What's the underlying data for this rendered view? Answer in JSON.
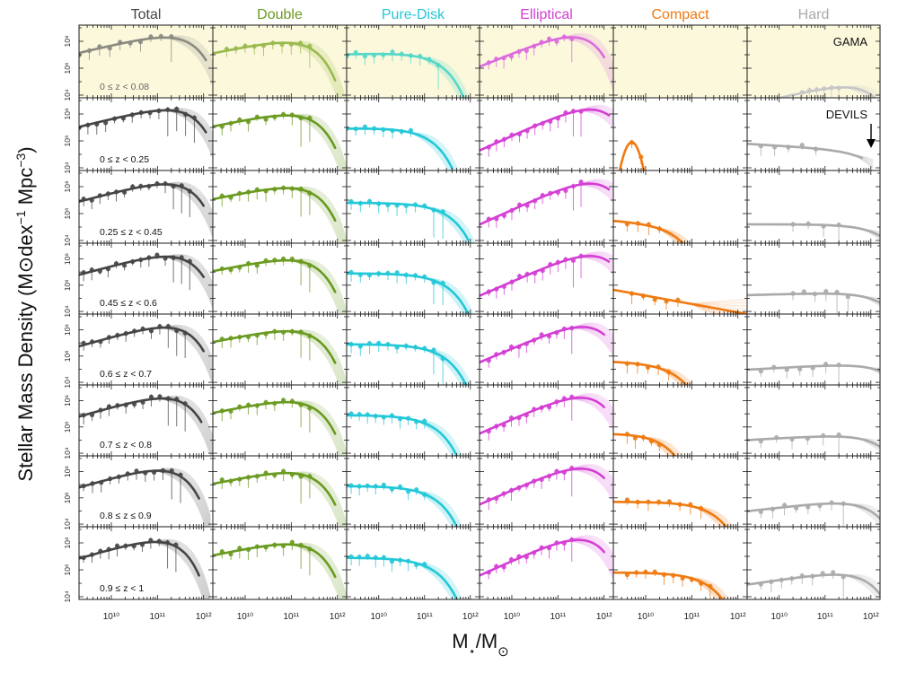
{
  "figure": {
    "ylabel_pre": "Stellar Mass Density (M",
    "ylabel_mid": "dex",
    "ylabel_exp1": "−1",
    "ylabel_mpc": " Mpc",
    "ylabel_exp2": "−3",
    "ylabel_post": ")",
    "xlabel_pre": "M",
    "xlabel_star": "⋆",
    "xlabel_mid": "/M",
    "sun_symbol": "⊙",
    "gama_label": "GAMA",
    "devils_label": "DEVILS"
  },
  "chart_data": {
    "type": "line",
    "layout": "grid of 8 rows × 6 columns of small multiple log-log panels",
    "xlabel": "M⋆/M⊙",
    "ylabel": "Stellar Mass Density (M⊙dex⁻¹ Mpc⁻³)",
    "x_scale": "log",
    "y_scale": "log",
    "xlim_log10": [
      9.3,
      12.2
    ],
    "ylim_log10": [
      3.8,
      9.2
    ],
    "x_ticks": [
      {
        "log": 10,
        "label": "10¹⁰"
      },
      {
        "log": 11,
        "label": "10¹¹"
      },
      {
        "log": 12,
        "label": "10¹²"
      }
    ],
    "y_ticks": [
      {
        "log": 4,
        "label": "10⁴"
      },
      {
        "log": 6,
        "label": "10⁶"
      },
      {
        "log": 8,
        "label": "10⁸"
      }
    ],
    "columns": [
      {
        "name": "Total",
        "color": "#454545",
        "color_gama": "#8a8a80"
      },
      {
        "name": "Double",
        "color": "#6a9a1f",
        "color_gama": "#9aba4e"
      },
      {
        "name": "Pure-Disk",
        "color": "#22c8d8",
        "color_gama": "#55d8c8"
      },
      {
        "name": "Elliptical",
        "color": "#d43ed4",
        "color_gama": "#dc6adc"
      },
      {
        "name": "Compact",
        "color": "#ef7a10",
        "color_gama": "#ef7a10"
      },
      {
        "name": "Hard",
        "color": "#aaaaaa",
        "color_gama": "#c6c6c6"
      }
    ],
    "rows": [
      {
        "label": "0 ≤ z < 0.08",
        "survey": "GAMA"
      },
      {
        "label": "0 ≤ z < 0.25",
        "survey": "DEVILS"
      },
      {
        "label": "0.25 ≤ z < 0.45",
        "survey": "DEVILS"
      },
      {
        "label": "0.45 ≤ z < 0.6",
        "survey": "DEVILS"
      },
      {
        "label": "0.6 ≤ z < 0.7",
        "survey": "DEVILS"
      },
      {
        "label": "0.7 ≤ z < 0.8",
        "survey": "DEVILS"
      },
      {
        "label": "0.8 ≤ z ≤ 0.9",
        "survey": "DEVILS"
      },
      {
        "label": "0.9 ≤ z < 1",
        "survey": "DEVILS"
      }
    ],
    "gama_background": "#fbf8dc",
    "panels": [
      [
        {
          "type": "schechter",
          "logMs": 11.25,
          "alpha": -0.2,
          "phi": 8.7,
          "xmax": 12.05,
          "points": 10,
          "pt_min": 9.3,
          "pt_max": 11.3
        },
        {
          "type": "schechter",
          "logMs": 11.0,
          "alpha": -0.3,
          "phi": 8.3,
          "xmax": 11.95,
          "points": 10,
          "pt_min": 9.6,
          "pt_max": 11.4
        },
        {
          "type": "schechter",
          "logMs": 10.95,
          "alpha": -0.9,
          "phi": 7.2,
          "xmax": 12.15,
          "points": 11,
          "pt_min": 9.3,
          "pt_max": 11.3
        },
        {
          "type": "schechter",
          "logMs": 11.15,
          "alpha": 0.4,
          "phi": 8.7,
          "xmax": 12.0,
          "points": 12,
          "pt_min": 9.5,
          "pt_max": 11.3
        },
        {
          "type": "none"
        },
        {
          "type": "schechter",
          "logMs": 11.5,
          "alpha": -0.2,
          "phi": 5.0,
          "xmax": 12.2,
          "points": 6,
          "pt_min": 10.5,
          "pt_max": 11.3
        }
      ],
      [
        {
          "type": "schechter",
          "logMs": 11.25,
          "alpha": -0.15,
          "phi": 8.7,
          "xmax": 12.05,
          "points": 14,
          "pt_min": 9.3,
          "pt_max": 11.8
        },
        {
          "type": "schechter",
          "logMs": 11.05,
          "alpha": -0.3,
          "phi": 8.3,
          "xmax": 11.95,
          "points": 11,
          "pt_min": 9.5,
          "pt_max": 11.4
        },
        {
          "type": "schechter",
          "logMs": 10.75,
          "alpha": -0.95,
          "phi": 7.0,
          "xmax": 11.6,
          "points": 8,
          "pt_min": 9.3,
          "pt_max": 10.7
        },
        {
          "type": "schechter",
          "logMs": 11.5,
          "alpha": 0.55,
          "phi": 8.7,
          "xmax": 12.1,
          "points": 13,
          "pt_min": 9.5,
          "pt_max": 11.5
        },
        {
          "type": "spike",
          "center": 9.7,
          "peak": 5.9,
          "width": 0.18,
          "xmax": 10.1,
          "points": 2,
          "pt_min": 9.7,
          "pt_max": 9.9
        },
        {
          "type": "schechter",
          "logMs": 11.7,
          "alpha": -1.2,
          "phi": 5.3,
          "xmax": 11.8,
          "points": 5,
          "pt_min": 9.6,
          "pt_max": 10.8
        }
      ],
      [
        {
          "type": "schechter",
          "logMs": 11.2,
          "alpha": -0.1,
          "phi": 8.6,
          "xmax": 12.0,
          "points": 14,
          "pt_min": 9.4,
          "pt_max": 11.7
        },
        {
          "type": "schechter",
          "logMs": 11.05,
          "alpha": -0.3,
          "phi": 8.3,
          "xmax": 11.95,
          "points": 11,
          "pt_min": 9.5,
          "pt_max": 11.4
        },
        {
          "type": "schechter",
          "logMs": 11.15,
          "alpha": -1.0,
          "phi": 6.8,
          "xmax": 11.95,
          "points": 11,
          "pt_min": 9.4,
          "pt_max": 11.4
        },
        {
          "type": "schechter",
          "logMs": 11.5,
          "alpha": 0.55,
          "phi": 8.6,
          "xmax": 12.1,
          "points": 13,
          "pt_min": 9.5,
          "pt_max": 11.5
        },
        {
          "type": "schechter",
          "logMs": 10.3,
          "alpha": -1.2,
          "phi": 5.3,
          "xmax": 11.1,
          "points": 4,
          "pt_min": 9.6,
          "pt_max": 10.3
        },
        {
          "type": "schechter",
          "logMs": 11.9,
          "alpha": -1.0,
          "phi": 5.2,
          "xmax": 12.2,
          "points": 4,
          "pt_min": 10.3,
          "pt_max": 11.3
        }
      ],
      [
        {
          "type": "schechter",
          "logMs": 11.2,
          "alpha": -0.05,
          "phi": 8.6,
          "xmax": 12.0,
          "points": 14,
          "pt_min": 9.4,
          "pt_max": 11.7
        },
        {
          "type": "schechter",
          "logMs": 11.05,
          "alpha": -0.3,
          "phi": 8.3,
          "xmax": 11.95,
          "points": 11,
          "pt_min": 9.5,
          "pt_max": 11.4
        },
        {
          "type": "schechter",
          "logMs": 11.1,
          "alpha": -1.0,
          "phi": 6.9,
          "xmax": 11.95,
          "points": 11,
          "pt_min": 9.4,
          "pt_max": 11.4
        },
        {
          "type": "schechter",
          "logMs": 11.5,
          "alpha": 0.55,
          "phi": 8.6,
          "xmax": 12.1,
          "points": 13,
          "pt_min": 9.5,
          "pt_max": 11.5
        },
        {
          "type": "line",
          "y0": 5.65,
          "y1": 3.8,
          "xmax": 12.2,
          "points": 5,
          "pt_min": 9.7,
          "pt_max": 10.7
        },
        {
          "type": "schechter",
          "logMs": 11.9,
          "alpha": -0.9,
          "phi": 5.5,
          "xmax": 12.2,
          "points": 6,
          "pt_min": 10.3,
          "pt_max": 11.5
        }
      ],
      [
        {
          "type": "schechter",
          "logMs": 11.15,
          "alpha": 0.0,
          "phi": 8.6,
          "xmax": 12.0,
          "points": 13,
          "pt_min": 9.4,
          "pt_max": 11.6
        },
        {
          "type": "schechter",
          "logMs": 11.05,
          "alpha": -0.3,
          "phi": 8.3,
          "xmax": 11.95,
          "points": 11,
          "pt_min": 9.5,
          "pt_max": 11.4
        },
        {
          "type": "schechter",
          "logMs": 11.05,
          "alpha": -1.0,
          "phi": 6.9,
          "xmax": 11.95,
          "points": 11,
          "pt_min": 9.4,
          "pt_max": 11.4
        },
        {
          "type": "schechter",
          "logMs": 11.35,
          "alpha": 0.5,
          "phi": 8.6,
          "xmax": 12.0,
          "points": 12,
          "pt_min": 9.5,
          "pt_max": 11.3
        },
        {
          "type": "schechter",
          "logMs": 10.3,
          "alpha": -1.1,
          "phi": 5.5,
          "xmax": 11.1,
          "points": 5,
          "pt_min": 9.6,
          "pt_max": 10.5
        },
        {
          "type": "schechter",
          "logMs": 12.0,
          "alpha": -0.8,
          "phi": 5.5,
          "xmax": 12.2,
          "points": 7,
          "pt_min": 9.6,
          "pt_max": 11.3
        }
      ],
      [
        {
          "type": "schechter",
          "logMs": 11.1,
          "alpha": 0.0,
          "phi": 8.6,
          "xmax": 11.95,
          "points": 13,
          "pt_min": 9.4,
          "pt_max": 11.6
        },
        {
          "type": "schechter",
          "logMs": 11.05,
          "alpha": -0.3,
          "phi": 8.3,
          "xmax": 11.95,
          "points": 11,
          "pt_min": 9.5,
          "pt_max": 11.4
        },
        {
          "type": "schechter",
          "logMs": 10.85,
          "alpha": -1.0,
          "phi": 6.9,
          "xmax": 11.8,
          "points": 10,
          "pt_min": 9.4,
          "pt_max": 11.0
        },
        {
          "type": "schechter",
          "logMs": 11.3,
          "alpha": 0.55,
          "phi": 8.6,
          "xmax": 12.0,
          "points": 12,
          "pt_min": 9.5,
          "pt_max": 11.3
        },
        {
          "type": "schechter",
          "logMs": 10.0,
          "alpha": -0.9,
          "phi": 5.6,
          "xmax": 10.7,
          "points": 5,
          "pt_min": 9.6,
          "pt_max": 10.3
        },
        {
          "type": "schechter",
          "logMs": 11.8,
          "alpha": -0.8,
          "phi": 5.5,
          "xmax": 12.2,
          "points": 6,
          "pt_min": 9.6,
          "pt_max": 11.3
        }
      ],
      [
        {
          "type": "schechter",
          "logMs": 11.0,
          "alpha": 0.0,
          "phi": 8.5,
          "xmax": 11.9,
          "points": 12,
          "pt_min": 9.4,
          "pt_max": 11.5
        },
        {
          "type": "schechter",
          "logMs": 11.05,
          "alpha": -0.3,
          "phi": 8.3,
          "xmax": 11.95,
          "points": 11,
          "pt_min": 9.5,
          "pt_max": 11.4
        },
        {
          "type": "schechter",
          "logMs": 10.85,
          "alpha": -1.0,
          "phi": 6.9,
          "xmax": 11.8,
          "points": 10,
          "pt_min": 9.4,
          "pt_max": 11.0
        },
        {
          "type": "schechter",
          "logMs": 11.3,
          "alpha": 0.55,
          "phi": 8.6,
          "xmax": 12.0,
          "points": 12,
          "pt_min": 9.5,
          "pt_max": 11.3
        },
        {
          "type": "schechter",
          "logMs": 11.1,
          "alpha": -1.0,
          "phi": 5.7,
          "xmax": 12.0,
          "points": 8,
          "pt_min": 9.6,
          "pt_max": 11.2
        },
        {
          "type": "schechter",
          "logMs": 11.6,
          "alpha": -0.6,
          "phi": 5.9,
          "xmax": 12.2,
          "points": 8,
          "pt_min": 9.6,
          "pt_max": 11.4
        }
      ],
      [
        {
          "type": "schechter",
          "logMs": 10.95,
          "alpha": 0.0,
          "phi": 8.5,
          "xmax": 11.9,
          "points": 12,
          "pt_min": 9.4,
          "pt_max": 11.4
        },
        {
          "type": "schechter",
          "logMs": 11.05,
          "alpha": -0.3,
          "phi": 8.3,
          "xmax": 11.95,
          "points": 11,
          "pt_min": 9.5,
          "pt_max": 11.4
        },
        {
          "type": "schechter",
          "logMs": 10.85,
          "alpha": -1.0,
          "phi": 6.9,
          "xmax": 11.8,
          "points": 10,
          "pt_min": 9.4,
          "pt_max": 11.0
        },
        {
          "type": "schechter",
          "logMs": 11.25,
          "alpha": 0.55,
          "phi": 8.6,
          "xmax": 12.0,
          "points": 12,
          "pt_min": 9.5,
          "pt_max": 11.3
        },
        {
          "type": "schechter",
          "logMs": 11.0,
          "alpha": -1.0,
          "phi": 5.8,
          "xmax": 11.9,
          "points": 10,
          "pt_min": 9.6,
          "pt_max": 11.4
        },
        {
          "type": "schechter",
          "logMs": 11.5,
          "alpha": -0.5,
          "phi": 6.0,
          "xmax": 12.2,
          "points": 9,
          "pt_min": 9.6,
          "pt_max": 11.4
        }
      ]
    ]
  }
}
